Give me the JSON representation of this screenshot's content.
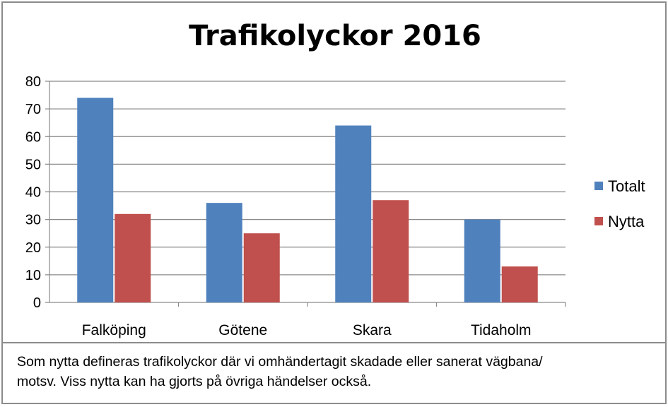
{
  "chart_data": {
    "type": "bar",
    "title": "Trafikolyckor 2016",
    "categories": [
      "Falköping",
      "Götene",
      "Skara",
      "Tidaholm"
    ],
    "series": [
      {
        "name": "Totalt",
        "color": "#4f81bd",
        "values": [
          74,
          36,
          64,
          30
        ]
      },
      {
        "name": "Nytta",
        "color": "#c0504d",
        "values": [
          32,
          25,
          37,
          13
        ]
      }
    ],
    "ylim": [
      0,
      80
    ],
    "yticks": [
      0,
      10,
      20,
      30,
      40,
      50,
      60,
      70,
      80
    ],
    "grid": true,
    "legend": "right"
  },
  "caption": {
    "line1": "Som nytta defineras trafikolyckor där vi omhändertagit skadade eller sanerat vägbana/",
    "line2": "motsv. Viss nytta kan ha gjorts på övriga händelser också."
  }
}
